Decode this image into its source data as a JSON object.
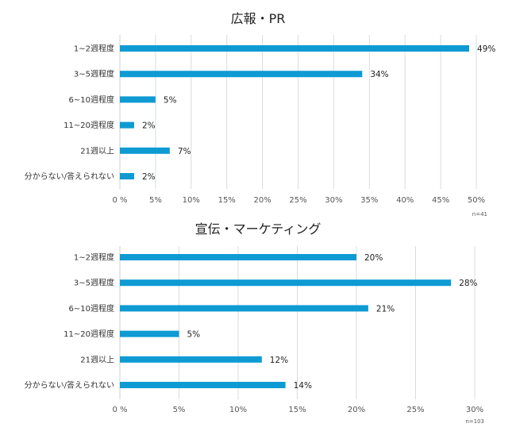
{
  "colors": {
    "bar": "#0e9bd3",
    "grid": "#d6dde3"
  },
  "chart_data": [
    {
      "type": "bar",
      "orientation": "horizontal",
      "title": "広報・PR",
      "categories": [
        "1~2週程度",
        "3~5週程度",
        "6~10週程度",
        "11~20週程度",
        "21週以上",
        "分からない/答えられない"
      ],
      "values": [
        49,
        34,
        5,
        2,
        7,
        2
      ],
      "data_labels": [
        "49%",
        "34%",
        "5%",
        "2%",
        "7%",
        "2%"
      ],
      "xlim": [
        0,
        50
      ],
      "xticks": [
        0,
        5,
        10,
        15,
        20,
        25,
        30,
        35,
        40,
        45,
        50
      ],
      "xtick_labels": [
        "0 %",
        "5%",
        "10%",
        "15%",
        "20%",
        "25%",
        "30%",
        "35%",
        "40%",
        "45%",
        "50%"
      ],
      "note": "n=41",
      "grid": true
    },
    {
      "type": "bar",
      "orientation": "horizontal",
      "title": "宣伝・マーケティング",
      "categories": [
        "1~2週程度",
        "3~5週程度",
        "6~10週程度",
        "11~20週程度",
        "21週以上",
        "分からない/答えられない"
      ],
      "values": [
        20,
        28,
        21,
        5,
        12,
        14
      ],
      "data_labels": [
        "20%",
        "28%",
        "21%",
        "5%",
        "12%",
        "14%"
      ],
      "xlim": [
        0,
        30
      ],
      "xticks": [
        0,
        5,
        10,
        15,
        20,
        25,
        30
      ],
      "xtick_labels": [
        "0 %",
        "5%",
        "10%",
        "15%",
        "20%",
        "25%",
        "30%"
      ],
      "note": "n=103",
      "grid": true
    }
  ]
}
